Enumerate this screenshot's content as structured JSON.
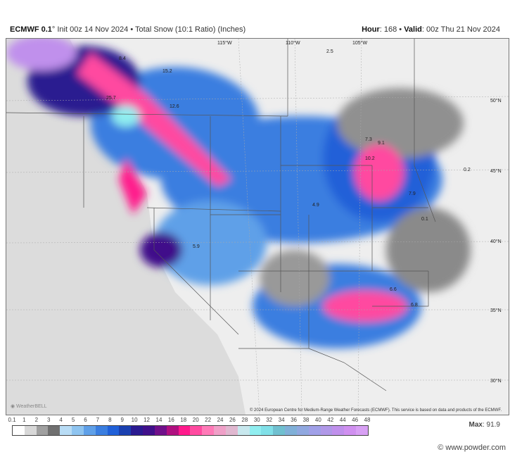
{
  "header": {
    "model": "ECMWF 0.1",
    "init": "Init 00z 14 Nov 2024",
    "product": "Total Snow (10:1 Ratio) (Inches)",
    "hour_label": "Hour",
    "hour": "168",
    "valid_label": "Valid",
    "valid": "00z Thu 21 Nov 2024"
  },
  "map": {
    "latitude_labels": [
      "50°N",
      "45°N",
      "40°N",
      "35°N",
      "30°N"
    ],
    "longitude_labels": [
      "115°W",
      "110°W",
      "105°W"
    ],
    "value_labels": [
      "15.2",
      "12.6",
      "25.7",
      "8.4",
      "9.1",
      "10.2",
      "7.3",
      "7.9",
      "6.6",
      "6.8",
      "0.2",
      "0.1",
      "2.5",
      "4.9",
      "5.9"
    ],
    "copyright": "© 2024 European Centre for Medium-Range Weather Forecasts (ECMWF). This service is based on data and products of the ECMWF.",
    "logo": "WeatherBELL"
  },
  "legend": {
    "ticks": [
      "0.1",
      "1",
      "2",
      "3",
      "4",
      "5",
      "6",
      "7",
      "8",
      "9",
      "10",
      "12",
      "14",
      "16",
      "18",
      "20",
      "22",
      "24",
      "26",
      "28",
      "30",
      "32",
      "34",
      "36",
      "38",
      "40",
      "42",
      "44",
      "46",
      "48"
    ],
    "colors": [
      "#ffffff",
      "#d8d8d8",
      "#a0a0a0",
      "#707070",
      "#b8dcf5",
      "#8ec4f0",
      "#5fa0e8",
      "#3a7ee0",
      "#2060d8",
      "#1a40b0",
      "#2a1a90",
      "#40108a",
      "#70108a",
      "#b01080",
      "#ff1a8c",
      "#ff4aa0",
      "#ff7ab8",
      "#f0a0c8",
      "#e0b8d0",
      "#c8e8ee",
      "#90eef0",
      "#80e0e8",
      "#70c0d0",
      "#80b0d8",
      "#90a8e0",
      "#a0a0e8",
      "#b098e8",
      "#c090ec",
      "#d090f0",
      "#d8a0f4"
    ],
    "max_label": "Max",
    "max_value": "91.9"
  },
  "credit": "© www.powder.com"
}
